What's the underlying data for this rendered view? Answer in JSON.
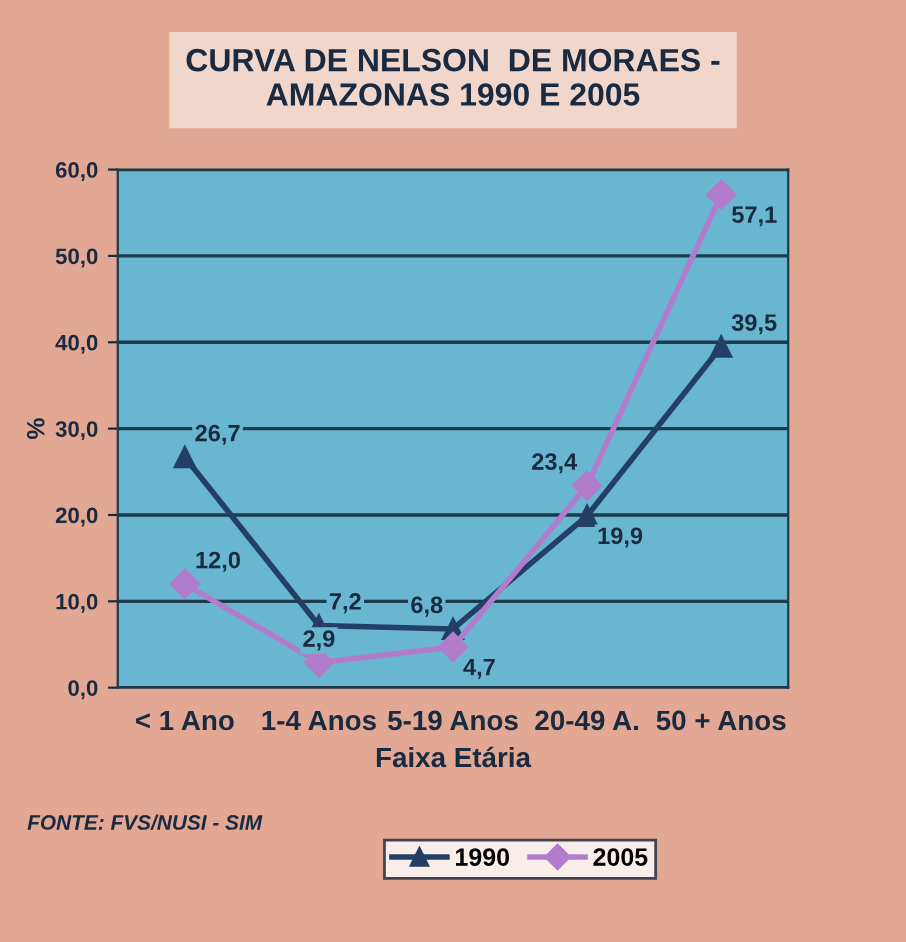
{
  "chart_data": {
    "type": "line",
    "title": "CURVA DE NELSON  DE MORAES -\nAMAZONAS 1990 E 2005",
    "xlabel": "Faixa Etária",
    "ylabel": "%",
    "categories": [
      "< 1 Ano",
      "1-4 Anos",
      "5-19 Anos",
      "20-49 A.",
      "50 + Anos"
    ],
    "series": [
      {
        "name": "1990",
        "color": "#233f66",
        "marker": "triangle",
        "values": [
          26.7,
          7.2,
          6.8,
          19.9,
          39.5
        ],
        "value_labels": [
          "26,7",
          "7,2",
          "6,8",
          "19,9",
          "39,5"
        ]
      },
      {
        "name": "2005",
        "color": "#b27ccc",
        "marker": "diamond",
        "values": [
          12.0,
          2.9,
          4.7,
          23.4,
          57.1
        ],
        "value_labels": [
          "12,0",
          "2,9",
          "4,7",
          "23,4",
          "57,1"
        ]
      }
    ],
    "ylim": [
      0,
      60
    ],
    "yticks": [
      {
        "value": 0,
        "label": "0,0"
      },
      {
        "value": 10,
        "label": "10,0"
      },
      {
        "value": 20,
        "label": "20,0"
      },
      {
        "value": 30,
        "label": "30,0"
      },
      {
        "value": 40,
        "label": "40,0"
      },
      {
        "value": 50,
        "label": "50,0"
      },
      {
        "value": 60,
        "label": "60,0"
      }
    ],
    "grid": "y",
    "legend": "bottom",
    "line_style": "solid",
    "annotations": [
      "FONTE: FVS/NUSI - SIM"
    ]
  }
}
